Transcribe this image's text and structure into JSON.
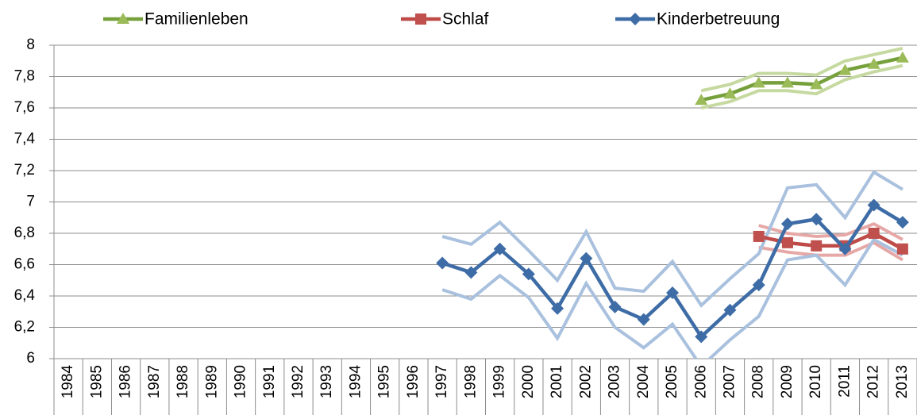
{
  "chart_data": {
    "type": "line",
    "categories": [
      "1984",
      "1985",
      "1986",
      "1987",
      "1988",
      "1989",
      "1990",
      "1991",
      "1992",
      "1993",
      "1994",
      "1995",
      "1996",
      "1997",
      "1998",
      "1999",
      "2000",
      "2001",
      "2002",
      "2003",
      "2004",
      "2005",
      "2006",
      "2007",
      "2008",
      "2009",
      "2010",
      "2011",
      "2012",
      "2013"
    ],
    "series": [
      {
        "name": "Familienleben",
        "color": "#76a03c",
        "band_color": "#c6d9a0",
        "marker": "triangle",
        "marker_color": "#9bbb59",
        "values": [
          null,
          null,
          null,
          null,
          null,
          null,
          null,
          null,
          null,
          null,
          null,
          null,
          null,
          null,
          null,
          null,
          null,
          null,
          null,
          null,
          null,
          null,
          7.65,
          7.69,
          7.76,
          7.76,
          7.75,
          7.84,
          7.88,
          7.92
        ],
        "upper": [
          null,
          null,
          null,
          null,
          null,
          null,
          null,
          null,
          null,
          null,
          null,
          null,
          null,
          null,
          null,
          null,
          null,
          null,
          null,
          null,
          null,
          null,
          7.71,
          7.75,
          7.82,
          7.82,
          7.81,
          7.9,
          7.94,
          7.98
        ],
        "lower": [
          null,
          null,
          null,
          null,
          null,
          null,
          null,
          null,
          null,
          null,
          null,
          null,
          null,
          null,
          null,
          null,
          null,
          null,
          null,
          null,
          null,
          null,
          7.6,
          7.64,
          7.71,
          7.71,
          7.69,
          7.78,
          7.83,
          7.87
        ]
      },
      {
        "name": "Schlaf",
        "color": "#be4b48",
        "band_color": "#e6a8a7",
        "marker": "square",
        "marker_color": "#c0504d",
        "values": [
          null,
          null,
          null,
          null,
          null,
          null,
          null,
          null,
          null,
          null,
          null,
          null,
          null,
          null,
          null,
          null,
          null,
          null,
          null,
          null,
          null,
          null,
          null,
          null,
          6.78,
          6.74,
          6.72,
          6.72,
          6.8,
          6.7
        ],
        "upper": [
          null,
          null,
          null,
          null,
          null,
          null,
          null,
          null,
          null,
          null,
          null,
          null,
          null,
          null,
          null,
          null,
          null,
          null,
          null,
          null,
          null,
          null,
          null,
          null,
          6.85,
          6.8,
          6.78,
          6.79,
          6.86,
          6.76
        ],
        "lower": [
          null,
          null,
          null,
          null,
          null,
          null,
          null,
          null,
          null,
          null,
          null,
          null,
          null,
          null,
          null,
          null,
          null,
          null,
          null,
          null,
          null,
          null,
          null,
          null,
          6.71,
          6.68,
          6.66,
          6.66,
          6.74,
          6.63
        ]
      },
      {
        "name": "Kinderbetreuung",
        "color": "#3e6ca6",
        "band_color": "#a9c1de",
        "marker": "diamond",
        "marker_color": "#3e6ca6",
        "values": [
          null,
          null,
          null,
          null,
          null,
          null,
          null,
          null,
          null,
          null,
          null,
          null,
          null,
          6.61,
          6.55,
          6.7,
          6.54,
          6.32,
          6.64,
          6.33,
          6.25,
          6.42,
          6.14,
          6.31,
          6.47,
          6.86,
          6.89,
          6.7,
          6.98,
          6.87
        ],
        "upper": [
          null,
          null,
          null,
          null,
          null,
          null,
          null,
          null,
          null,
          null,
          null,
          null,
          null,
          6.78,
          6.73,
          6.87,
          6.69,
          6.5,
          6.81,
          6.45,
          6.43,
          6.62,
          6.34,
          6.51,
          6.67,
          7.09,
          7.11,
          6.9,
          7.19,
          7.08
        ],
        "lower": [
          null,
          null,
          null,
          null,
          null,
          null,
          null,
          null,
          null,
          null,
          null,
          null,
          null,
          6.44,
          6.38,
          6.53,
          6.39,
          6.13,
          6.48,
          6.2,
          6.07,
          6.22,
          5.95,
          6.12,
          6.27,
          6.63,
          6.66,
          6.47,
          6.76,
          6.66
        ]
      }
    ],
    "ylim": [
      6,
      8
    ],
    "yticks": [
      6,
      {
        "value": 6.2,
        "label": "6,2"
      },
      {
        "value": 6.4,
        "label": "6,4"
      },
      {
        "value": 6.6,
        "label": "6,6"
      },
      {
        "value": 6.8,
        "label": "6,8"
      },
      7,
      {
        "value": 7.2,
        "label": "7,2"
      },
      {
        "value": 7.4,
        "label": "7,4"
      },
      {
        "value": 7.6,
        "label": "7,6"
      },
      {
        "value": 7.8,
        "label": "7,8"
      },
      8
    ],
    "grid": true,
    "legend": "top"
  }
}
